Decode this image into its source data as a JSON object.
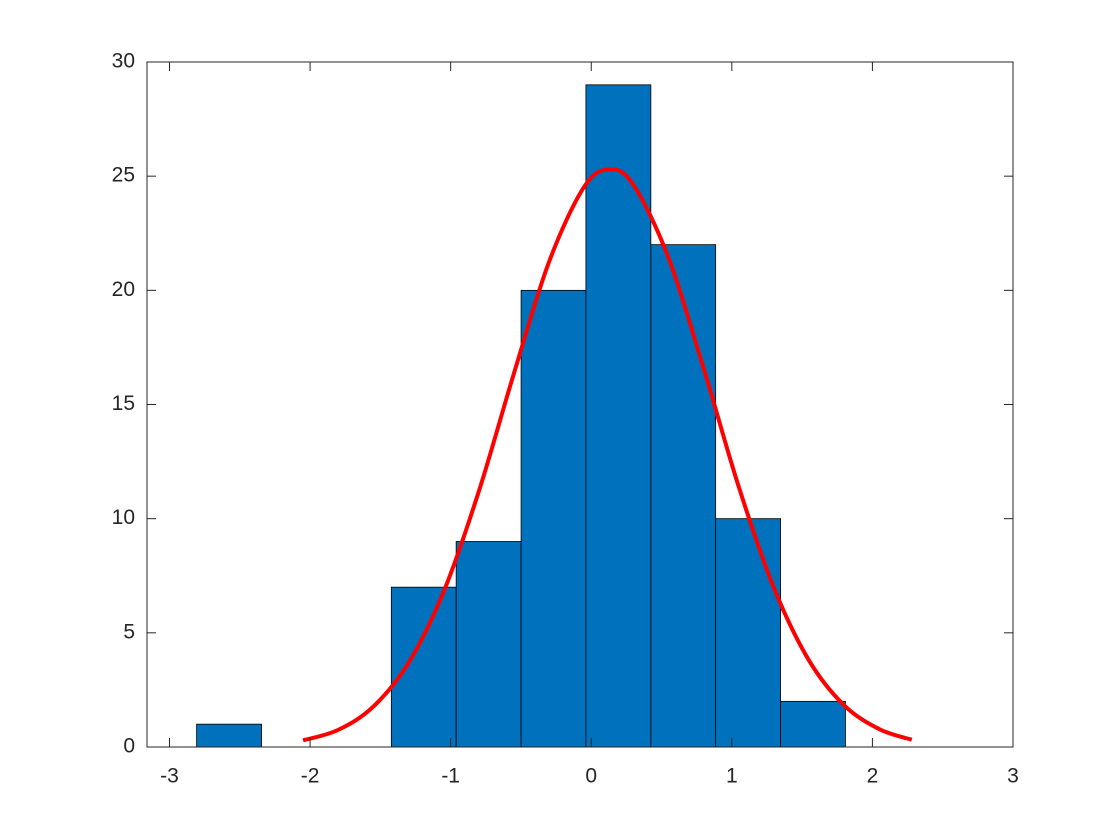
{
  "chart_data": [
    {
      "type": "histogram",
      "bins": [
        -2.807,
        -2.345,
        -1.884,
        -1.422,
        -0.961,
        -0.499,
        -0.038,
        0.424,
        0.885,
        1.347,
        1.808
      ],
      "values": [
        1,
        0,
        0,
        7,
        9,
        20,
        29,
        22,
        10,
        2
      ],
      "color": "#0072bd",
      "xlim": [
        -3.16,
        3
      ],
      "xticks": [
        -3,
        -2,
        -1,
        0,
        1,
        2,
        3
      ],
      "ylim": [
        0,
        30
      ],
      "yticks": [
        0,
        5,
        10,
        15,
        20,
        25,
        30
      ],
      "grid": false,
      "box": true
    },
    {
      "type": "line",
      "x": [
        -2.05,
        -1.8,
        -1.55,
        -1.3,
        -1.05,
        -0.8,
        -0.55,
        -0.3,
        -0.05,
        0.13,
        0.3,
        0.55,
        0.8,
        1.05,
        1.3,
        1.55,
        1.8,
        2.05,
        2.28
      ],
      "values": [
        0.29,
        0.75,
        1.77,
        3.68,
        6.8,
        11.19,
        16.36,
        21.25,
        24.54,
        25.3,
        24.62,
        21.42,
        16.57,
        11.38,
        6.96,
        3.78,
        1.82,
        0.78,
        0.32
      ],
      "color": "#ff0000"
    }
  ]
}
